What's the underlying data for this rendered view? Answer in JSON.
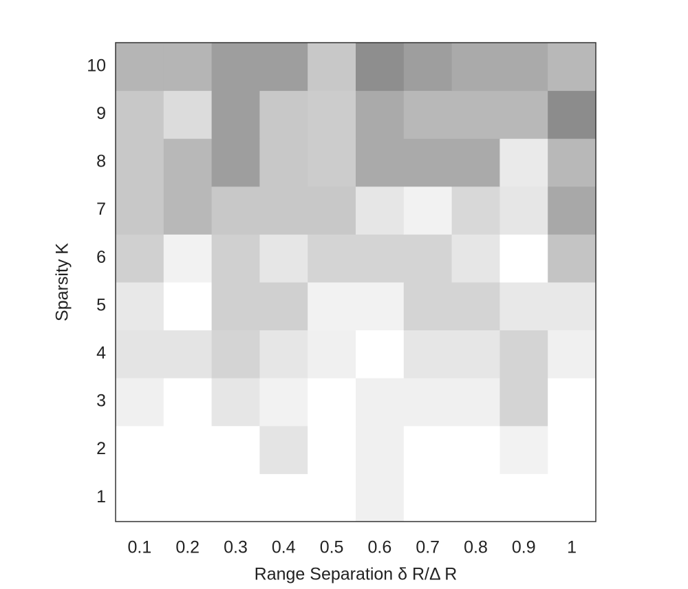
{
  "chart_data": {
    "type": "heatmap",
    "xlabel": "Range Separation  δ R/Δ R",
    "ylabel": "Sparsity  K",
    "x": [
      0.1,
      0.2,
      0.3,
      0.4,
      0.5,
      0.6,
      0.7,
      0.8,
      0.9,
      1
    ],
    "y": [
      1,
      2,
      3,
      4,
      5,
      6,
      7,
      8,
      9,
      10
    ],
    "z": [
      [
        255,
        255,
        255,
        255,
        255,
        240,
        255,
        255,
        255,
        255
      ],
      [
        255,
        255,
        255,
        228,
        255,
        240,
        255,
        255,
        242,
        255
      ],
      [
        240,
        255,
        230,
        242,
        255,
        240,
        240,
        240,
        212,
        255
      ],
      [
        228,
        228,
        212,
        230,
        240,
        255,
        230,
        230,
        212,
        240
      ],
      [
        232,
        255,
        208,
        208,
        242,
        242,
        212,
        212,
        232,
        232
      ],
      [
        208,
        242,
        208,
        230,
        212,
        212,
        212,
        230,
        255,
        196
      ],
      [
        200,
        184,
        200,
        200,
        200,
        230,
        242,
        216,
        230,
        168
      ],
      [
        200,
        184,
        158,
        200,
        204,
        170,
        170,
        170,
        234,
        184
      ],
      [
        200,
        220,
        158,
        200,
        204,
        170,
        184,
        184,
        184,
        140
      ],
      [
        181,
        181,
        158,
        158,
        200,
        142,
        158,
        170,
        170,
        184
      ]
    ],
    "colormap": "gray"
  }
}
